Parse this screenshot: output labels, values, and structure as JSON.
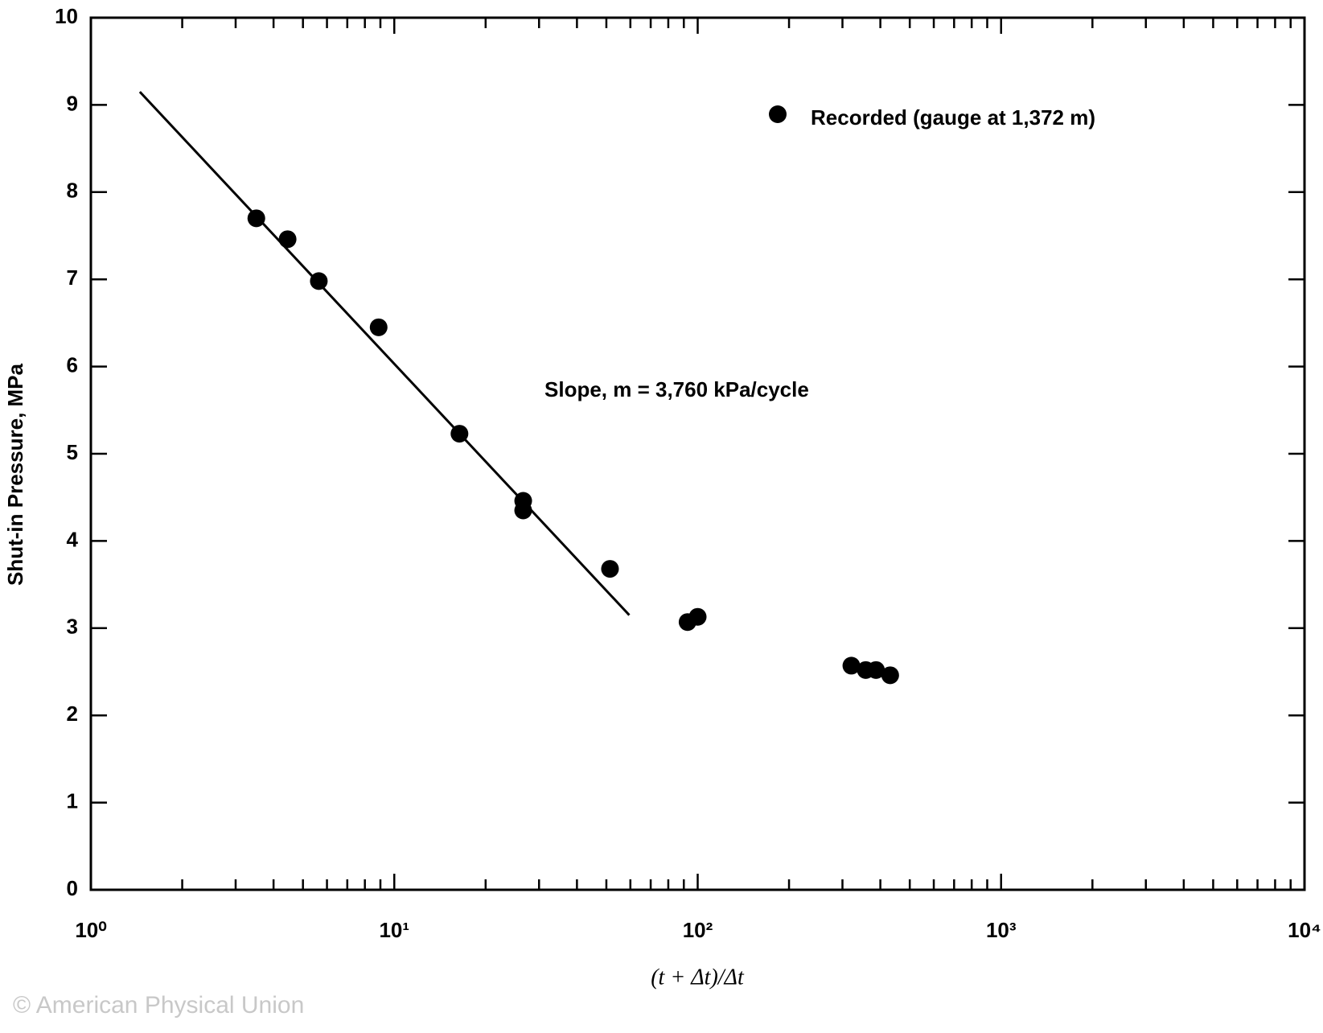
{
  "chart_data": {
    "type": "scatter",
    "x_label": "(t + Δt)/Δt",
    "y_label": "Shut-in Pressure, MPa",
    "annotation": "Slope, m = 3,760 kPa/cycle",
    "watermark": "© American Physical Union",
    "x_log": true,
    "xlim": [
      1,
      10000
    ],
    "ylim": [
      0,
      10
    ],
    "xticks": [
      {
        "value": 1,
        "label": "10⁰"
      },
      {
        "value": 10,
        "label": "10¹"
      },
      {
        "value": 100,
        "label": "10²"
      },
      {
        "value": 1000,
        "label": "10³"
      },
      {
        "value": 10000,
        "label": "10⁴"
      }
    ],
    "xminorticks": [
      2,
      3,
      4,
      5,
      6,
      7,
      8,
      9,
      20,
      30,
      40,
      50,
      60,
      70,
      80,
      90,
      200,
      300,
      400,
      500,
      600,
      700,
      800,
      900,
      2000,
      3000,
      4000,
      5000,
      6000,
      7000,
      8000,
      9000
    ],
    "yticks": [
      0,
      1,
      2,
      3,
      4,
      5,
      6,
      7,
      8,
      9,
      10
    ],
    "legend": "upper right",
    "series": [
      {
        "name": "Recorded (gauge at 1,372 m)",
        "color": "#000000",
        "x": [
          3.51,
          4.45,
          5.64,
          8.88,
          16.4,
          26.6,
          26.6,
          51.4,
          92.6,
          100,
          321,
          358,
          387,
          431
        ],
        "values": [
          7.7,
          7.46,
          6.98,
          6.45,
          5.23,
          4.46,
          4.35,
          3.68,
          3.07,
          3.13,
          2.57,
          2.52,
          2.52,
          2.46
        ]
      }
    ],
    "fit_line": {
      "color": "#000000",
      "x": [
        1.45,
        59.5
      ],
      "values": [
        9.15,
        3.15
      ]
    }
  }
}
